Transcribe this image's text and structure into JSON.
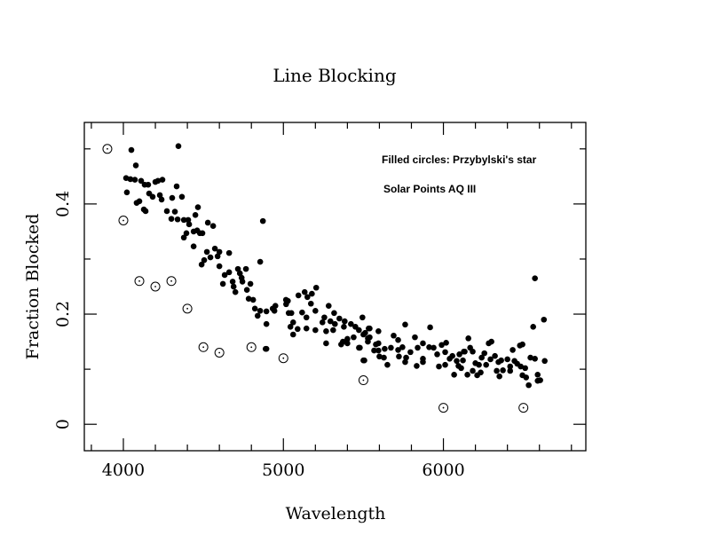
{
  "chart_data": {
    "type": "scatter",
    "title": "Line Blocking",
    "xlabel": "Wavelength",
    "ylabel": "Fraction Blocked",
    "xlim": [
      3756,
      6890
    ],
    "ylim": [
      -0.048,
      0.548
    ],
    "x_major_ticks": [
      4000,
      5000,
      6000
    ],
    "x_tick_labels": [
      "4000",
      "5000",
      "6000"
    ],
    "x_minor_step": 200,
    "y_major_ticks": [
      0,
      0.2,
      0.4
    ],
    "y_tick_labels": [
      "0",
      "0.2",
      "0.4"
    ],
    "y_minor_step": 0.1,
    "grid": false,
    "legend": [
      {
        "label": "Filled circles: Przybylski's star",
        "position": "top-right"
      },
      {
        "label": "Solar Points AQ III",
        "position": "top-right"
      }
    ],
    "series": [
      {
        "name": "Przybylski's star",
        "marker": "filled-circle",
        "color": "#000000",
        "points": [
          [
            4050,
            0.498
          ],
          [
            4344,
            0.505
          ],
          [
            4078,
            0.47
          ],
          [
            4017,
            0.447
          ],
          [
            4044,
            0.445
          ],
          [
            4072,
            0.444
          ],
          [
            4111,
            0.442
          ],
          [
            4133,
            0.435
          ],
          [
            4155,
            0.435
          ],
          [
            4200,
            0.44
          ],
          [
            4216,
            0.442
          ],
          [
            4244,
            0.444
          ],
          [
            4333,
            0.432
          ],
          [
            4022,
            0.421
          ],
          [
            4161,
            0.419
          ],
          [
            4183,
            0.413
          ],
          [
            4228,
            0.416
          ],
          [
            4239,
            0.408
          ],
          [
            4305,
            0.411
          ],
          [
            4366,
            0.413
          ],
          [
            4100,
            0.405
          ],
          [
            4083,
            0.402
          ],
          [
            4128,
            0.39
          ],
          [
            4139,
            0.387
          ],
          [
            4272,
            0.387
          ],
          [
            4322,
            0.386
          ],
          [
            4466,
            0.394
          ],
          [
            4450,
            0.38
          ],
          [
            4300,
            0.373
          ],
          [
            4339,
            0.372
          ],
          [
            4378,
            0.371
          ],
          [
            4405,
            0.371
          ],
          [
            4411,
            0.363
          ],
          [
            4394,
            0.347
          ],
          [
            4439,
            0.35
          ],
          [
            4478,
            0.347
          ],
          [
            4378,
            0.339
          ],
          [
            4439,
            0.323
          ],
          [
            4528,
            0.366
          ],
          [
            4561,
            0.36
          ],
          [
            4872,
            0.369
          ],
          [
            4461,
            0.352
          ],
          [
            4494,
            0.347
          ],
          [
            4522,
            0.313
          ],
          [
            4572,
            0.319
          ],
          [
            4600,
            0.313
          ],
          [
            4544,
            0.303
          ],
          [
            4589,
            0.305
          ],
          [
            4661,
            0.311
          ],
          [
            4505,
            0.298
          ],
          [
            4489,
            0.29
          ],
          [
            4855,
            0.295
          ],
          [
            4600,
            0.287
          ],
          [
            4716,
            0.282
          ],
          [
            4766,
            0.282
          ],
          [
            4661,
            0.276
          ],
          [
            4633,
            0.271
          ],
          [
            4728,
            0.274
          ],
          [
            4739,
            0.266
          ],
          [
            4744,
            0.259
          ],
          [
            4683,
            0.259
          ],
          [
            4689,
            0.25
          ],
          [
            4700,
            0.24
          ],
          [
            4622,
            0.255
          ],
          [
            4794,
            0.255
          ],
          [
            4772,
            0.244
          ],
          [
            4783,
            0.228
          ],
          [
            4811,
            0.226
          ],
          [
            4822,
            0.21
          ],
          [
            4855,
            0.206
          ],
          [
            4894,
            0.205
          ],
          [
            4933,
            0.21
          ],
          [
            4950,
            0.215
          ],
          [
            5016,
            0.226
          ],
          [
            5033,
            0.202
          ],
          [
            4839,
            0.197
          ],
          [
            4889,
            0.137
          ],
          [
            5205,
            0.248
          ],
          [
            5178,
            0.237
          ],
          [
            5133,
            0.24
          ],
          [
            5094,
            0.234
          ],
          [
            5150,
            0.231
          ],
          [
            5028,
            0.224
          ],
          [
            5017,
            0.218
          ],
          [
            5172,
            0.219
          ],
          [
            4944,
            0.206
          ],
          [
            5283,
            0.215
          ],
          [
            5200,
            0.206
          ],
          [
            5117,
            0.203
          ],
          [
            5050,
            0.202
          ],
          [
            5317,
            0.202
          ],
          [
            5144,
            0.194
          ],
          [
            5256,
            0.194
          ],
          [
            5494,
            0.194
          ],
          [
            5350,
            0.192
          ],
          [
            5383,
            0.187
          ],
          [
            5294,
            0.187
          ],
          [
            5061,
            0.185
          ],
          [
            5244,
            0.185
          ],
          [
            5422,
            0.182
          ],
          [
            4894,
            0.182
          ],
          [
            5322,
            0.182
          ],
          [
            5044,
            0.177
          ],
          [
            5378,
            0.177
          ],
          [
            5450,
            0.177
          ],
          [
            5089,
            0.173
          ],
          [
            5144,
            0.174
          ],
          [
            5200,
            0.171
          ],
          [
            5311,
            0.171
          ],
          [
            5267,
            0.169
          ],
          [
            5539,
            0.174
          ],
          [
            5594,
            0.169
          ],
          [
            5472,
            0.171
          ],
          [
            5500,
            0.163
          ],
          [
            5061,
            0.163
          ],
          [
            5439,
            0.158
          ],
          [
            5539,
            0.158
          ],
          [
            5400,
            0.155
          ],
          [
            5372,
            0.15
          ],
          [
            5528,
            0.15
          ],
          [
            5361,
            0.145
          ],
          [
            5400,
            0.147
          ],
          [
            5267,
            0.147
          ],
          [
            5472,
            0.139
          ],
          [
            5578,
            0.145
          ],
          [
            5594,
            0.134
          ],
          [
            4894,
            0.137
          ],
          [
            5500,
            0.116
          ],
          [
            5761,
            0.181
          ],
          [
            5917,
            0.176
          ],
          [
            5533,
            0.174
          ],
          [
            5511,
            0.166
          ],
          [
            5689,
            0.161
          ],
          [
            5822,
            0.158
          ],
          [
            5528,
            0.156
          ],
          [
            6156,
            0.156
          ],
          [
            5717,
            0.153
          ],
          [
            5594,
            0.147
          ],
          [
            5872,
            0.147
          ],
          [
            6017,
            0.148
          ],
          [
            5989,
            0.144
          ],
          [
            5911,
            0.14
          ],
          [
            5939,
            0.139
          ],
          [
            5744,
            0.14
          ],
          [
            5633,
            0.137
          ],
          [
            5672,
            0.139
          ],
          [
            5478,
            0.139
          ],
          [
            5839,
            0.139
          ],
          [
            5717,
            0.135
          ],
          [
            5567,
            0.134
          ],
          [
            5794,
            0.131
          ],
          [
            6011,
            0.131
          ],
          [
            6128,
            0.132
          ],
          [
            6100,
            0.127
          ],
          [
            5961,
            0.127
          ],
          [
            6056,
            0.124
          ],
          [
            5600,
            0.123
          ],
          [
            5628,
            0.121
          ],
          [
            5722,
            0.123
          ],
          [
            5767,
            0.121
          ],
          [
            5872,
            0.119
          ],
          [
            6039,
            0.119
          ],
          [
            5506,
            0.116
          ],
          [
            5761,
            0.113
          ],
          [
            5872,
            0.113
          ],
          [
            6083,
            0.115
          ],
          [
            5650,
            0.108
          ],
          [
            5833,
            0.106
          ],
          [
            5972,
            0.105
          ],
          [
            6011,
            0.108
          ],
          [
            6094,
            0.106
          ],
          [
            6111,
            0.102
          ],
          [
            6067,
            0.09
          ],
          [
            6150,
            0.09
          ],
          [
            6572,
            0.265
          ],
          [
            6628,
            0.19
          ],
          [
            6561,
            0.177
          ],
          [
            6300,
            0.15
          ],
          [
            6283,
            0.147
          ],
          [
            6494,
            0.145
          ],
          [
            6478,
            0.143
          ],
          [
            6167,
            0.139
          ],
          [
            6433,
            0.135
          ],
          [
            6133,
            0.132
          ],
          [
            6183,
            0.132
          ],
          [
            6256,
            0.129
          ],
          [
            6322,
            0.124
          ],
          [
            6544,
            0.121
          ],
          [
            6572,
            0.119
          ],
          [
            6239,
            0.121
          ],
          [
            6294,
            0.118
          ],
          [
            6361,
            0.116
          ],
          [
            6400,
            0.118
          ],
          [
            6444,
            0.115
          ],
          [
            6633,
            0.115
          ],
          [
            6122,
            0.116
          ],
          [
            6200,
            0.111
          ],
          [
            6344,
            0.113
          ],
          [
            6461,
            0.11
          ],
          [
            6267,
            0.108
          ],
          [
            6222,
            0.108
          ],
          [
            6483,
            0.105
          ],
          [
            6417,
            0.105
          ],
          [
            6511,
            0.102
          ],
          [
            6372,
            0.098
          ],
          [
            6183,
            0.097
          ],
          [
            6417,
            0.097
          ],
          [
            6333,
            0.097
          ],
          [
            6233,
            0.094
          ],
          [
            6494,
            0.089
          ],
          [
            6589,
            0.09
          ],
          [
            6350,
            0.087
          ],
          [
            6517,
            0.085
          ],
          [
            6605,
            0.08
          ],
          [
            6589,
            0.079
          ],
          [
            6533,
            0.071
          ],
          [
            6211,
            0.089
          ]
        ]
      },
      {
        "name": "Solar Points AQ III",
        "marker": "open-circle-dot",
        "color": "#000000",
        "points": [
          [
            3900,
            0.5
          ],
          [
            4000,
            0.37
          ],
          [
            4100,
            0.26
          ],
          [
            4200,
            0.25
          ],
          [
            4300,
            0.26
          ],
          [
            4400,
            0.21
          ],
          [
            4500,
            0.14
          ],
          [
            4600,
            0.13
          ],
          [
            4800,
            0.14
          ],
          [
            5000,
            0.12
          ],
          [
            5500,
            0.08
          ],
          [
            6000,
            0.03
          ],
          [
            6500,
            0.03
          ]
        ]
      }
    ]
  }
}
